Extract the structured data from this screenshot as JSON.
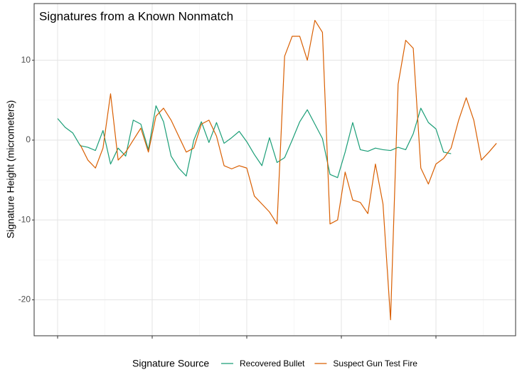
{
  "chart_data": {
    "type": "line",
    "title": "Signatures from a Known Nonmatch",
    "y_label": "Signature Height (micrometers)",
    "legend_title": "Signature Source",
    "legend": "bottom",
    "grid": true,
    "x": [
      0,
      40,
      80,
      120,
      160,
      200,
      240,
      280,
      320,
      360,
      400,
      440,
      480,
      520,
      560,
      600,
      640,
      680,
      720,
      760,
      800,
      840,
      880,
      920,
      960,
      1000,
      1040,
      1080,
      1120,
      1160,
      1200,
      1240,
      1280,
      1320,
      1360,
      1400,
      1440,
      1480,
      1520,
      1560,
      1600,
      1640,
      1680,
      1720,
      1760,
      1800,
      1840,
      1880,
      1920,
      1960,
      2000,
      2040,
      2080,
      2120,
      2160,
      2200,
      2240,
      2280,
      2320
    ],
    "series": [
      {
        "name": "Recovered Bullet",
        "color": "#1b9e77",
        "values": [
          2.7,
          1.6,
          0.9,
          -0.7,
          -0.9,
          -1.3,
          1.2,
          -3.0,
          -1.0,
          -2.0,
          2.5,
          2.0,
          -1.2,
          4.3,
          2.3,
          -2.0,
          -3.5,
          -4.5,
          0.0,
          2.3,
          -0.3,
          2.2,
          -0.4,
          0.3,
          1.1,
          -0.2,
          -1.8,
          -3.2,
          0.3,
          -2.8,
          -2.2,
          0.0,
          2.3,
          3.8,
          2.0,
          0.2,
          -4.3,
          -4.7,
          -1.5,
          2.2,
          -1.2,
          -1.4,
          -1.0,
          -1.2,
          -1.3,
          -0.9,
          -1.2,
          0.8,
          4.0,
          2.2,
          1.4,
          -1.5,
          -1.7,
          null,
          null,
          null,
          null,
          null,
          null
        ]
      },
      {
        "name": "Suspect Gun Test Fire",
        "color": "#d95f02",
        "values": [
          null,
          null,
          null,
          -0.6,
          -2.5,
          -3.5,
          -1.0,
          5.8,
          -2.5,
          -1.5,
          0.0,
          1.5,
          -1.5,
          3.0,
          4.0,
          2.5,
          0.5,
          -1.5,
          -1.0,
          2.0,
          2.5,
          0.5,
          -3.2,
          -3.6,
          -3.2,
          -3.5,
          -7.0,
          -8.0,
          -9.0,
          -10.5,
          10.5,
          13.0,
          13.0,
          10.0,
          15.0,
          13.5,
          -10.5,
          -10.0,
          -4.0,
          -7.5,
          -7.8,
          -9.2,
          -3.0,
          -8.0,
          -22.5,
          7.0,
          12.5,
          11.5,
          -3.5,
          -5.5,
          -3.0,
          -2.3,
          -1.0,
          2.5,
          5.3,
          2.5,
          -2.5,
          -1.5,
          -0.4
        ]
      }
    ],
    "xlim": [
      -124,
      2421
    ],
    "xticks": [
      0,
      500,
      1000,
      1500,
      2000
    ],
    "ylim": [
      -24.5,
      17.1
    ],
    "yticks": [
      -20,
      -10,
      0,
      10
    ]
  }
}
